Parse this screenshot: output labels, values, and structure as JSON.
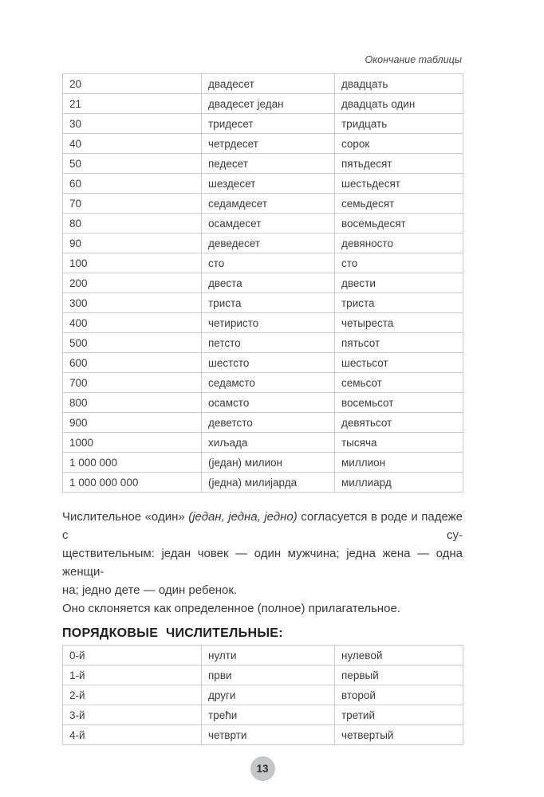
{
  "page": {
    "caption": "Окончание таблицы",
    "page_number": "13"
  },
  "cardinals_table": {
    "rows": [
      {
        "num": "20",
        "sr": "двадесет",
        "ru": "двадцать"
      },
      {
        "num": "21",
        "sr": "двадесет један",
        "ru": "двадцать один"
      },
      {
        "num": "30",
        "sr": "тридесет",
        "ru": "тридцать"
      },
      {
        "num": "40",
        "sr": "четрдесет",
        "ru": "сорок"
      },
      {
        "num": "50",
        "sr": "педесет",
        "ru": "пятьдесят"
      },
      {
        "num": "60",
        "sr": "шездесет",
        "ru": "шестьдесят"
      },
      {
        "num": "70",
        "sr": "седамдесет",
        "ru": "семьдесят"
      },
      {
        "num": "80",
        "sr": "осамдесет",
        "ru": "восемьдесят"
      },
      {
        "num": "90",
        "sr": "деведесет",
        "ru": "девяносто"
      },
      {
        "num": "100",
        "sr": "сто",
        "ru": "сто"
      },
      {
        "num": "200",
        "sr": "двеста",
        "ru": "двести"
      },
      {
        "num": "300",
        "sr": "триста",
        "ru": "триста"
      },
      {
        "num": "400",
        "sr": "четиристо",
        "ru": "четыреста"
      },
      {
        "num": "500",
        "sr": "петсто",
        "ru": "пятьсот"
      },
      {
        "num": "600",
        "sr": "шестсто",
        "ru": "шестьсот"
      },
      {
        "num": "700",
        "sr": "седамсто",
        "ru": "семьсот"
      },
      {
        "num": "800",
        "sr": "осамсто",
        "ru": "восемьсот"
      },
      {
        "num": "900",
        "sr": "деветсто",
        "ru": "девятьсот"
      },
      {
        "num": "1000",
        "sr": "хиљада",
        "ru": "тысяча"
      },
      {
        "num": "1 000 000",
        "sr": "(један) милион",
        "ru": "миллион"
      },
      {
        "num": "1 000 000 000",
        "sr": "(једна) милијарда",
        "ru": "миллиард"
      }
    ]
  },
  "intro": {
    "l1_pre": "Числительное «один» ",
    "l1_italic": "(један, једна, једно)",
    "l1_post": " согласуется в роде и падеже с су-",
    "l2": "ществительным: један човек — один мужчина; једна жена — одна женщи-",
    "l3": "на; једно дете — один ребенок.",
    "l4": "Оно склоняется как определенное (полное) прилагательное."
  },
  "ordinals": {
    "heading": "ПОРЯДКОВЫЕ ЧИСЛИТЕЛЬНЫЕ:",
    "rows": [
      {
        "num": "0-й",
        "sr": "нулти",
        "ru": "нулевой"
      },
      {
        "num": "1-й",
        "sr": "први",
        "ru": "первый"
      },
      {
        "num": "2-й",
        "sr": "други",
        "ru": "второй"
      },
      {
        "num": "3-й",
        "sr": "трећи",
        "ru": "третий"
      },
      {
        "num": "4-й",
        "sr": "четврти",
        "ru": "четвертый"
      }
    ]
  },
  "colors": {
    "table_border": "#cbcbcb",
    "text": "#3c3c3c",
    "heading_text": "#1d1d1d",
    "page_badge_bg": "#c5c6c8"
  }
}
